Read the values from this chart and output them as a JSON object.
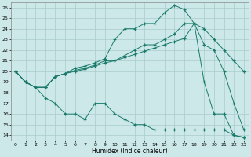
{
  "xlabel": "Humidex (Indice chaleur)",
  "bg_color": "#cce8e8",
  "grid_color": "#aacccc",
  "line_color": "#1a7a6a",
  "xlim": [
    -0.5,
    23.5
  ],
  "ylim": [
    13.5,
    26.5
  ],
  "yticks": [
    14,
    15,
    16,
    17,
    18,
    19,
    20,
    21,
    22,
    23,
    24,
    25,
    26
  ],
  "xticks": [
    0,
    1,
    2,
    3,
    4,
    5,
    6,
    7,
    8,
    9,
    10,
    11,
    12,
    13,
    14,
    15,
    16,
    17,
    18,
    19,
    20,
    21,
    22,
    23
  ],
  "line1_x": [
    0,
    1,
    2,
    3,
    4,
    5,
    6,
    7,
    8,
    9,
    10,
    11,
    12,
    13,
    14,
    15,
    16,
    17,
    18,
    19,
    20,
    21,
    22,
    23
  ],
  "line1_y": [
    20,
    19,
    18.5,
    17.5,
    17,
    16,
    16,
    15.5,
    17,
    17,
    16,
    15.5,
    15,
    15,
    14.5,
    14.5,
    14.5,
    14.5,
    14.5,
    14.5,
    14.5,
    14.5,
    14,
    13.8
  ],
  "line2_x": [
    0,
    1,
    2,
    3,
    4,
    5,
    6,
    7,
    8,
    9,
    10,
    11,
    12,
    13,
    14,
    15,
    16,
    17,
    18,
    19,
    20,
    21,
    22,
    23
  ],
  "line2_y": [
    20,
    19,
    18.5,
    18.5,
    19.5,
    19.8,
    20.3,
    20.5,
    20.8,
    21.2,
    23,
    24,
    24,
    24.5,
    24.5,
    25.5,
    26.2,
    25.8,
    24.5,
    19,
    16,
    16,
    14,
    13.8
  ],
  "line3_x": [
    0,
    1,
    2,
    3,
    4,
    5,
    6,
    7,
    8,
    9,
    10,
    11,
    12,
    13,
    14,
    15,
    16,
    17,
    18,
    19,
    20,
    21,
    22,
    23
  ],
  "line3_y": [
    20,
    19,
    18.5,
    18.5,
    19.5,
    19.8,
    20.1,
    20.3,
    20.6,
    21,
    21,
    21.5,
    22,
    22.5,
    22.5,
    23,
    23.5,
    24.5,
    24.5,
    22.5,
    22,
    20,
    17,
    14.5
  ],
  "line4_x": [
    0,
    1,
    2,
    3,
    4,
    5,
    6,
    7,
    8,
    9,
    10,
    11,
    12,
    13,
    14,
    15,
    16,
    17,
    18,
    19,
    20,
    21,
    22,
    23
  ],
  "line4_y": [
    20,
    19,
    18.5,
    18.5,
    19.5,
    19.8,
    20,
    20.2,
    20.5,
    20.8,
    21,
    21.3,
    21.6,
    21.9,
    22.2,
    22.5,
    22.8,
    23.1,
    24.5,
    24,
    23,
    22,
    21,
    20
  ]
}
